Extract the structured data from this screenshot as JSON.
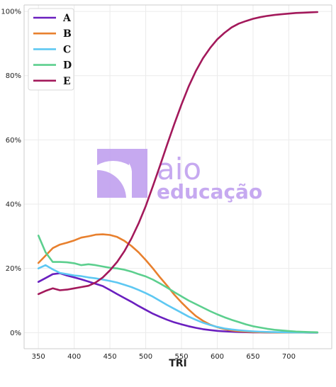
{
  "chart_data": {
    "type": "line",
    "title": "",
    "xlabel": "TRI",
    "ylabel": "",
    "xlim": [
      330,
      760
    ],
    "ylim": [
      -5,
      102
    ],
    "xticks": [
      350,
      400,
      450,
      500,
      550,
      600,
      650,
      700
    ],
    "yticks": [
      0,
      20,
      40,
      60,
      80,
      100
    ],
    "ytick_suffix": "%",
    "grid": true,
    "legend_position": "top-left",
    "x": [
      350,
      360,
      370,
      380,
      390,
      400,
      410,
      420,
      430,
      440,
      450,
      460,
      470,
      480,
      490,
      500,
      510,
      520,
      530,
      540,
      550,
      560,
      570,
      580,
      590,
      600,
      610,
      620,
      630,
      640,
      650,
      660,
      670,
      680,
      690,
      700,
      710,
      720,
      730,
      740
    ],
    "series": [
      {
        "name": "A",
        "color": "#6a1fbf",
        "values": [
          15.8,
          17.0,
          18.2,
          18.5,
          17.8,
          17.2,
          16.6,
          15.9,
          15.2,
          14.5,
          13.3,
          12.0,
          10.8,
          9.6,
          8.3,
          7.1,
          5.9,
          4.9,
          4.0,
          3.2,
          2.6,
          2.0,
          1.5,
          1.1,
          0.8,
          0.55,
          0.4,
          0.3,
          0.2,
          0.15,
          0.1,
          0.08,
          0.06,
          0.05,
          0.04,
          0.03,
          0.02,
          0.02,
          0.01,
          0.01
        ]
      },
      {
        "name": "B",
        "color": "#e8802e",
        "values": [
          21.7,
          24.0,
          26.3,
          27.4,
          28.0,
          28.7,
          29.6,
          30.0,
          30.5,
          30.6,
          30.4,
          29.8,
          28.6,
          27.0,
          25.0,
          22.6,
          20.0,
          17.2,
          14.6,
          11.8,
          9.4,
          7.2,
          5.2,
          3.7,
          2.5,
          1.7,
          1.1,
          0.7,
          0.45,
          0.3,
          0.2,
          0.13,
          0.09,
          0.06,
          0.04,
          0.03,
          0.02,
          0.02,
          0.01,
          0.01
        ]
      },
      {
        "name": "C",
        "color": "#5ec8f2",
        "values": [
          20.0,
          21.0,
          19.7,
          18.6,
          18.2,
          17.8,
          17.6,
          17.2,
          16.9,
          16.5,
          16.1,
          15.6,
          14.9,
          14.2,
          13.3,
          12.3,
          11.2,
          9.9,
          8.6,
          7.4,
          6.2,
          5.0,
          4.0,
          3.1,
          2.4,
          1.8,
          1.3,
          1.0,
          0.75,
          0.55,
          0.4,
          0.3,
          0.22,
          0.16,
          0.12,
          0.09,
          0.06,
          0.05,
          0.04,
          0.03
        ]
      },
      {
        "name": "D",
        "color": "#5ccf8e",
        "values": [
          30.2,
          25.0,
          22.0,
          22.0,
          21.9,
          21.6,
          21.0,
          21.3,
          21.0,
          20.6,
          20.2,
          20.0,
          19.6,
          19.0,
          18.2,
          17.5,
          16.5,
          15.3,
          14.0,
          12.6,
          11.3,
          10.0,
          8.9,
          7.8,
          6.7,
          5.7,
          4.8,
          4.0,
          3.3,
          2.6,
          2.0,
          1.6,
          1.2,
          0.9,
          0.7,
          0.5,
          0.35,
          0.25,
          0.18,
          0.12
        ]
      },
      {
        "name": "E",
        "color": "#a3195b",
        "values": [
          12.0,
          13.0,
          13.8,
          13.2,
          13.4,
          13.8,
          14.2,
          14.6,
          15.6,
          17.2,
          19.4,
          22.0,
          25.3,
          29.3,
          34.0,
          39.4,
          45.6,
          52.0,
          58.6,
          65.0,
          71.0,
          76.6,
          81.4,
          85.4,
          88.6,
          91.3,
          93.3,
          95.0,
          96.2,
          97.0,
          97.7,
          98.2,
          98.6,
          98.9,
          99.1,
          99.3,
          99.5,
          99.6,
          99.7,
          99.8
        ]
      }
    ]
  },
  "watermark": {
    "line1": "aio",
    "line2": "educação",
    "color": "#c3a5f0"
  }
}
